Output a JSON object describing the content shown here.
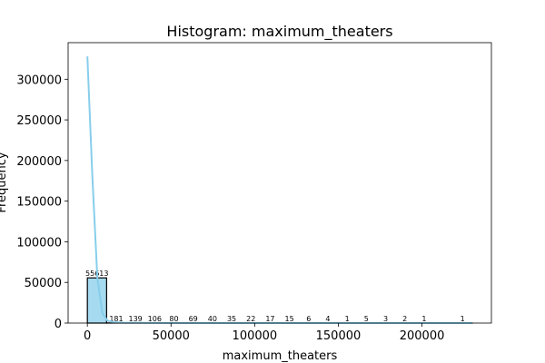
{
  "chart_data": {
    "type": "bar",
    "title": "Histogram: maximum_theaters",
    "xlabel": "maximum_theaters",
    "ylabel": "Frequency",
    "xlim": [
      -11500,
      241500
    ],
    "ylim": [
      0,
      345000
    ],
    "xticks": [
      0,
      50000,
      100000,
      150000,
      200000
    ],
    "yticks": [
      0,
      50000,
      100000,
      150000,
      200000,
      250000,
      300000
    ],
    "bar_color": "#87ceeb",
    "kde_color": "#87ceeb",
    "bin_edges": [
      0,
      11500,
      23000,
      34500,
      46000,
      57500,
      69000,
      80500,
      92000,
      103500,
      115000,
      126500,
      138000,
      149500,
      161000,
      172500,
      184000,
      195500,
      207000,
      218500,
      230000
    ],
    "counts": [
      55613,
      181,
      139,
      106,
      80,
      69,
      40,
      35,
      22,
      17,
      15,
      6,
      4,
      1,
      5,
      3,
      2,
      1,
      0,
      1
    ],
    "count_labels": [
      "55613",
      "181",
      "139",
      "106",
      "80",
      "69",
      "40",
      "35",
      "22",
      "17",
      "15",
      "6",
      "4",
      "1",
      "5",
      "3",
      "2",
      "1",
      "",
      "1"
    ],
    "kde": {
      "x": [
        0,
        3000,
        6000,
        9000,
        12000,
        16000,
        22000,
        30000,
        45000,
        70000,
        100000,
        140000,
        180000,
        230000
      ],
      "y": [
        328000,
        180000,
        55000,
        12000,
        3000,
        900,
        400,
        200,
        100,
        50,
        25,
        12,
        6,
        2
      ]
    }
  }
}
